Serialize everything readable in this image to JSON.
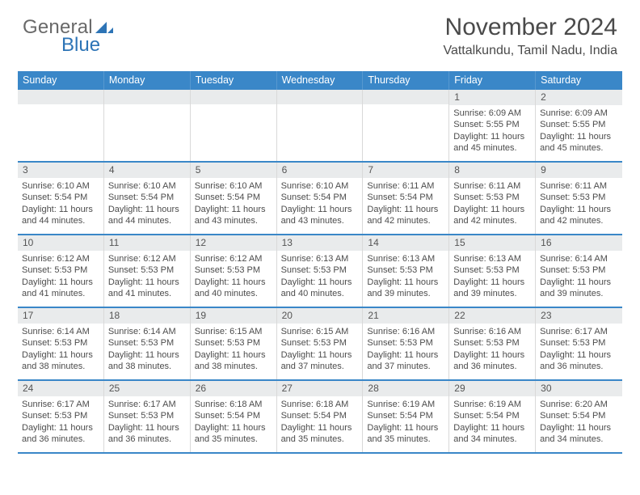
{
  "logo": {
    "text1": "General",
    "text2": "Blue"
  },
  "title": "November 2024",
  "location": "Vattalkundu, Tamil Nadu, India",
  "colors": {
    "header_bg": "#3a87c8",
    "header_fg": "#ffffff",
    "daynum_bg": "#e9ebec",
    "week_border": "#3a87c8",
    "cell_border": "#d9d9d9",
    "text": "#4c4c4c",
    "title": "#4a4a4a",
    "logo_gray": "#696969",
    "logo_blue": "#2d74b6",
    "bg": "#ffffff"
  },
  "day_fontsize": 11,
  "dow_fontsize": 12.5,
  "title_fontsize": 30,
  "location_fontsize": 16,
  "days_of_week": [
    "Sunday",
    "Monday",
    "Tuesday",
    "Wednesday",
    "Thursday",
    "Friday",
    "Saturday"
  ],
  "weeks": [
    [
      {
        "n": "",
        "l1": "",
        "l2": "",
        "l3": "",
        "l4": ""
      },
      {
        "n": "",
        "l1": "",
        "l2": "",
        "l3": "",
        "l4": ""
      },
      {
        "n": "",
        "l1": "",
        "l2": "",
        "l3": "",
        "l4": ""
      },
      {
        "n": "",
        "l1": "",
        "l2": "",
        "l3": "",
        "l4": ""
      },
      {
        "n": "",
        "l1": "",
        "l2": "",
        "l3": "",
        "l4": ""
      },
      {
        "n": "1",
        "l1": "Sunrise: 6:09 AM",
        "l2": "Sunset: 5:55 PM",
        "l3": "Daylight: 11 hours",
        "l4": "and 45 minutes."
      },
      {
        "n": "2",
        "l1": "Sunrise: 6:09 AM",
        "l2": "Sunset: 5:55 PM",
        "l3": "Daylight: 11 hours",
        "l4": "and 45 minutes."
      }
    ],
    [
      {
        "n": "3",
        "l1": "Sunrise: 6:10 AM",
        "l2": "Sunset: 5:54 PM",
        "l3": "Daylight: 11 hours",
        "l4": "and 44 minutes."
      },
      {
        "n": "4",
        "l1": "Sunrise: 6:10 AM",
        "l2": "Sunset: 5:54 PM",
        "l3": "Daylight: 11 hours",
        "l4": "and 44 minutes."
      },
      {
        "n": "5",
        "l1": "Sunrise: 6:10 AM",
        "l2": "Sunset: 5:54 PM",
        "l3": "Daylight: 11 hours",
        "l4": "and 43 minutes."
      },
      {
        "n": "6",
        "l1": "Sunrise: 6:10 AM",
        "l2": "Sunset: 5:54 PM",
        "l3": "Daylight: 11 hours",
        "l4": "and 43 minutes."
      },
      {
        "n": "7",
        "l1": "Sunrise: 6:11 AM",
        "l2": "Sunset: 5:54 PM",
        "l3": "Daylight: 11 hours",
        "l4": "and 42 minutes."
      },
      {
        "n": "8",
        "l1": "Sunrise: 6:11 AM",
        "l2": "Sunset: 5:53 PM",
        "l3": "Daylight: 11 hours",
        "l4": "and 42 minutes."
      },
      {
        "n": "9",
        "l1": "Sunrise: 6:11 AM",
        "l2": "Sunset: 5:53 PM",
        "l3": "Daylight: 11 hours",
        "l4": "and 42 minutes."
      }
    ],
    [
      {
        "n": "10",
        "l1": "Sunrise: 6:12 AM",
        "l2": "Sunset: 5:53 PM",
        "l3": "Daylight: 11 hours",
        "l4": "and 41 minutes."
      },
      {
        "n": "11",
        "l1": "Sunrise: 6:12 AM",
        "l2": "Sunset: 5:53 PM",
        "l3": "Daylight: 11 hours",
        "l4": "and 41 minutes."
      },
      {
        "n": "12",
        "l1": "Sunrise: 6:12 AM",
        "l2": "Sunset: 5:53 PM",
        "l3": "Daylight: 11 hours",
        "l4": "and 40 minutes."
      },
      {
        "n": "13",
        "l1": "Sunrise: 6:13 AM",
        "l2": "Sunset: 5:53 PM",
        "l3": "Daylight: 11 hours",
        "l4": "and 40 minutes."
      },
      {
        "n": "14",
        "l1": "Sunrise: 6:13 AM",
        "l2": "Sunset: 5:53 PM",
        "l3": "Daylight: 11 hours",
        "l4": "and 39 minutes."
      },
      {
        "n": "15",
        "l1": "Sunrise: 6:13 AM",
        "l2": "Sunset: 5:53 PM",
        "l3": "Daylight: 11 hours",
        "l4": "and 39 minutes."
      },
      {
        "n": "16",
        "l1": "Sunrise: 6:14 AM",
        "l2": "Sunset: 5:53 PM",
        "l3": "Daylight: 11 hours",
        "l4": "and 39 minutes."
      }
    ],
    [
      {
        "n": "17",
        "l1": "Sunrise: 6:14 AM",
        "l2": "Sunset: 5:53 PM",
        "l3": "Daylight: 11 hours",
        "l4": "and 38 minutes."
      },
      {
        "n": "18",
        "l1": "Sunrise: 6:14 AM",
        "l2": "Sunset: 5:53 PM",
        "l3": "Daylight: 11 hours",
        "l4": "and 38 minutes."
      },
      {
        "n": "19",
        "l1": "Sunrise: 6:15 AM",
        "l2": "Sunset: 5:53 PM",
        "l3": "Daylight: 11 hours",
        "l4": "and 38 minutes."
      },
      {
        "n": "20",
        "l1": "Sunrise: 6:15 AM",
        "l2": "Sunset: 5:53 PM",
        "l3": "Daylight: 11 hours",
        "l4": "and 37 minutes."
      },
      {
        "n": "21",
        "l1": "Sunrise: 6:16 AM",
        "l2": "Sunset: 5:53 PM",
        "l3": "Daylight: 11 hours",
        "l4": "and 37 minutes."
      },
      {
        "n": "22",
        "l1": "Sunrise: 6:16 AM",
        "l2": "Sunset: 5:53 PM",
        "l3": "Daylight: 11 hours",
        "l4": "and 36 minutes."
      },
      {
        "n": "23",
        "l1": "Sunrise: 6:17 AM",
        "l2": "Sunset: 5:53 PM",
        "l3": "Daylight: 11 hours",
        "l4": "and 36 minutes."
      }
    ],
    [
      {
        "n": "24",
        "l1": "Sunrise: 6:17 AM",
        "l2": "Sunset: 5:53 PM",
        "l3": "Daylight: 11 hours",
        "l4": "and 36 minutes."
      },
      {
        "n": "25",
        "l1": "Sunrise: 6:17 AM",
        "l2": "Sunset: 5:53 PM",
        "l3": "Daylight: 11 hours",
        "l4": "and 36 minutes."
      },
      {
        "n": "26",
        "l1": "Sunrise: 6:18 AM",
        "l2": "Sunset: 5:54 PM",
        "l3": "Daylight: 11 hours",
        "l4": "and 35 minutes."
      },
      {
        "n": "27",
        "l1": "Sunrise: 6:18 AM",
        "l2": "Sunset: 5:54 PM",
        "l3": "Daylight: 11 hours",
        "l4": "and 35 minutes."
      },
      {
        "n": "28",
        "l1": "Sunrise: 6:19 AM",
        "l2": "Sunset: 5:54 PM",
        "l3": "Daylight: 11 hours",
        "l4": "and 35 minutes."
      },
      {
        "n": "29",
        "l1": "Sunrise: 6:19 AM",
        "l2": "Sunset: 5:54 PM",
        "l3": "Daylight: 11 hours",
        "l4": "and 34 minutes."
      },
      {
        "n": "30",
        "l1": "Sunrise: 6:20 AM",
        "l2": "Sunset: 5:54 PM",
        "l3": "Daylight: 11 hours",
        "l4": "and 34 minutes."
      }
    ]
  ]
}
